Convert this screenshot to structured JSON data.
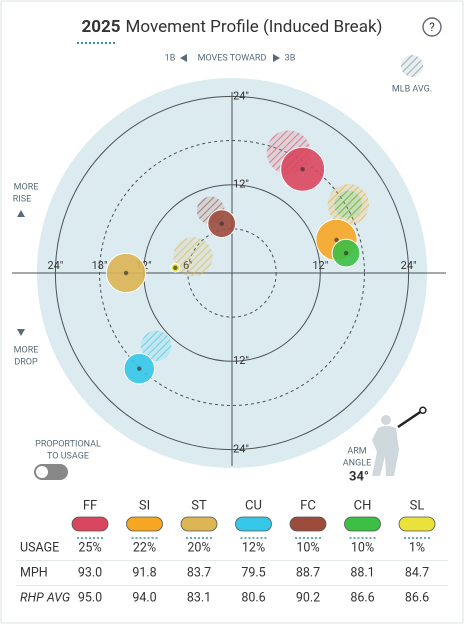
{
  "chart_data": {
    "type": "movement",
    "title_year": "2025",
    "title": "Movement Profile (Induced Break)",
    "help": "?",
    "direction": {
      "left": "1B",
      "center": "MOVES TOWARD",
      "right": "3B"
    },
    "legend_avg": "MLB AVG.",
    "rise_label": [
      "MORE",
      "RISE"
    ],
    "drop_label": [
      "MORE",
      "DROP"
    ],
    "toggle_label": [
      "PROPORTIONAL",
      "TO USAGE"
    ],
    "arm_angle_label": [
      "ARM",
      "ANGLE"
    ],
    "arm_angle": 34,
    "arm_angle_value_label": "34°",
    "xlim": [
      -26.5,
      26.5
    ],
    "ylim": [
      -26.5,
      26.5
    ],
    "rings": [
      6,
      12,
      18,
      24
    ],
    "xticks": [
      {
        "value": -24,
        "label": "24\""
      },
      {
        "value": -18,
        "label": "18\""
      },
      {
        "value": -12,
        "label": "12\""
      },
      {
        "value": -6,
        "label": "6\""
      },
      {
        "value": 12,
        "label": "12\""
      },
      {
        "value": 24,
        "label": "24\""
      }
    ],
    "yticks": [
      {
        "value": 24,
        "label": "24\""
      },
      {
        "value": 12,
        "label": "12\""
      },
      {
        "value": -12,
        "label": "12\""
      },
      {
        "value": -24,
        "label": "24\""
      }
    ],
    "categories": [
      "FF",
      "SI",
      "ST",
      "CU",
      "FC",
      "CH",
      "SL"
    ],
    "colors": [
      "#d9475f",
      "#f5a623",
      "#dcb554",
      "#35c7e8",
      "#9c4c3d",
      "#3bbf45",
      "#e8e23b"
    ],
    "x": [
      9.6,
      14.2,
      -14.4,
      -12.6,
      -1.4,
      15.5,
      -7.7
    ],
    "y": [
      14.1,
      4.5,
      0,
      -13.0,
      6.7,
      2.7,
      0.7
    ],
    "avg_x": [
      7.7,
      15.8,
      -5.3,
      -10.3,
      -2.9,
      15.8,
      -15.8
    ],
    "avg_y": [
      16.4,
      9.3,
      2.2,
      -9.9,
      8.5,
      9.3,
      1.5
    ],
    "row_labels": [
      "USAGE",
      "MPH",
      "RHP AVG"
    ],
    "usage": [
      25,
      22,
      20,
      12,
      10,
      10,
      1
    ],
    "usage_labels": [
      "25%",
      "22%",
      "20%",
      "12%",
      "10%",
      "10%",
      "1%"
    ],
    "mph": [
      93.0,
      91.8,
      83.7,
      79.5,
      88.7,
      88.1,
      84.7
    ],
    "mph_labels": [
      "93.0",
      "91.8",
      "83.7",
      "79.5",
      "88.7",
      "88.1",
      "84.7"
    ],
    "rhp_avg": [
      95.0,
      94.0,
      83.1,
      80.6,
      90.2,
      86.6,
      86.6
    ],
    "rhp_avg_labels": [
      "95.0",
      "94.0",
      "83.1",
      "80.6",
      "90.2",
      "86.6",
      "86.6"
    ]
  }
}
